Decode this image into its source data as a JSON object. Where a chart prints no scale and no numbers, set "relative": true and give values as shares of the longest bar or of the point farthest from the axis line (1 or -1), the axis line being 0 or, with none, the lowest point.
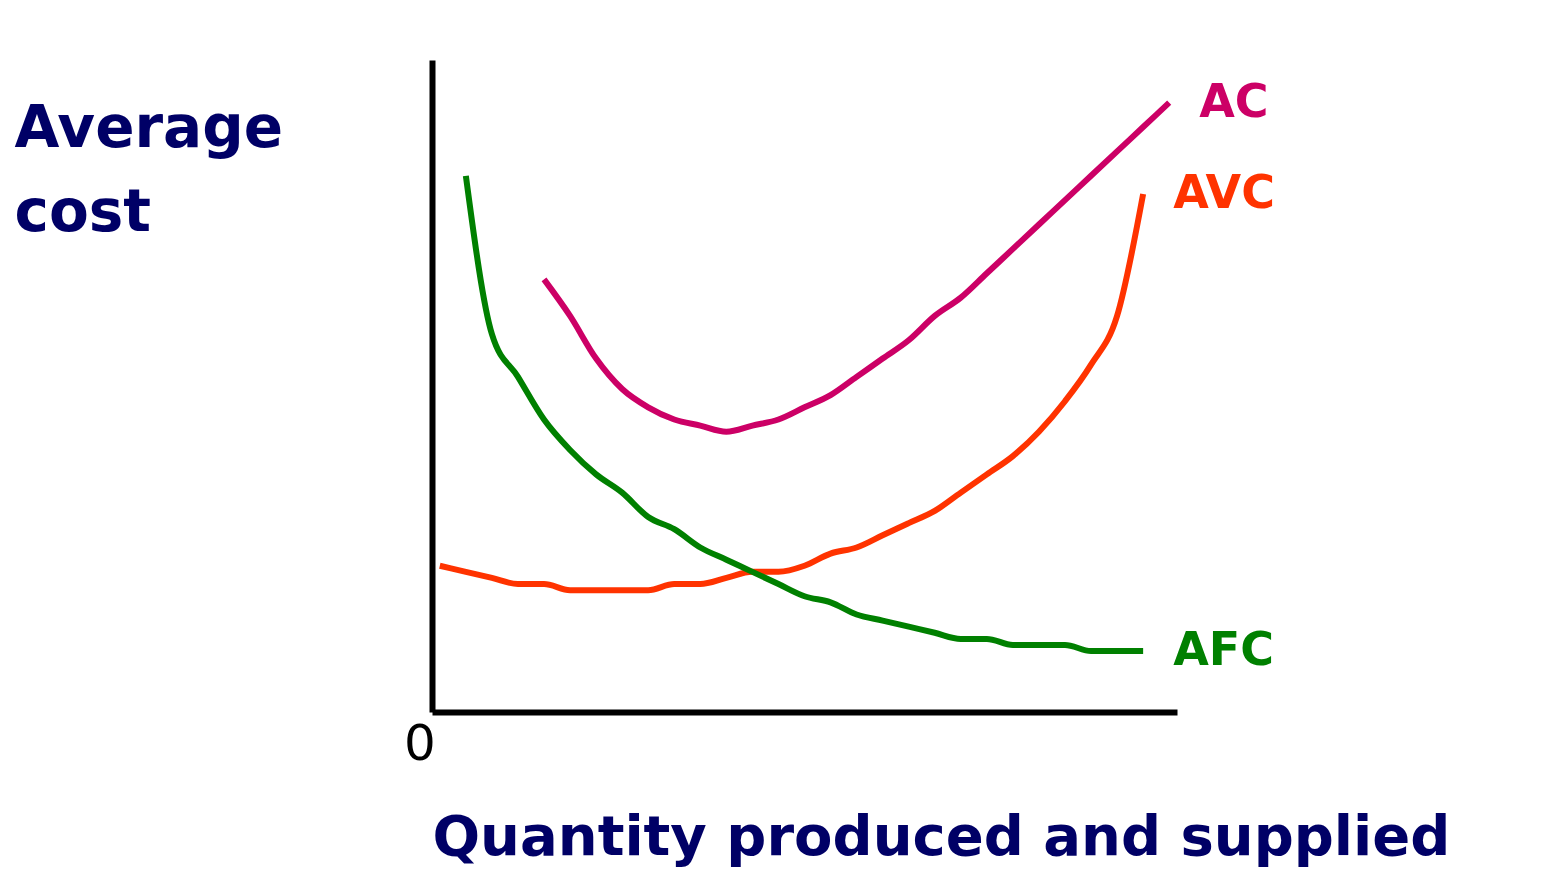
{
  "chart_data": {
    "type": "line",
    "relative": true,
    "xlabel": "Quantity produced and supplied",
    "ylabel": "Average cost",
    "annotations": [
      "0"
    ],
    "legend": false,
    "grid": false,
    "categories": [
      null,
      null,
      null,
      null,
      null,
      null,
      null,
      null,
      null,
      null,
      null,
      null,
      null,
      null,
      null,
      null,
      null,
      null,
      null,
      null,
      null,
      null,
      null,
      null,
      null,
      null,
      null,
      null,
      null
    ],
    "series": [
      {
        "name": "AC",
        "color": "#cc0066",
        "values": [
          null,
          null,
          null,
          null,
          0.71,
          0.65,
          0.58,
          0.53,
          0.5,
          0.48,
          0.47,
          0.46,
          0.47,
          0.48,
          0.5,
          0.52,
          0.55,
          0.58,
          0.61,
          0.65,
          0.68,
          0.72,
          0.76,
          0.8,
          0.84,
          0.88,
          0.92,
          0.96,
          1
        ]
      },
      {
        "name": "AVC",
        "color": "#ff3300",
        "values": [
          0.24,
          0.23,
          0.22,
          0.21,
          0.21,
          0.2,
          0.2,
          0.2,
          0.2,
          0.21,
          0.21,
          0.22,
          0.23,
          0.23,
          0.24,
          0.26,
          0.27,
          0.29,
          0.31,
          0.33,
          0.36,
          0.39,
          0.42,
          0.46,
          0.51,
          0.57,
          0.65,
          0.85,
          null
        ]
      },
      {
        "name": "AFC",
        "color": "#008000",
        "values": [
          null,
          0.88,
          0.62,
          0.55,
          0.48,
          0.43,
          0.39,
          0.36,
          0.32,
          0.3,
          0.27,
          0.25,
          0.23,
          0.21,
          0.19,
          0.18,
          0.16,
          0.15,
          0.14,
          0.13,
          0.12,
          0.12,
          0.11,
          0.11,
          0.11,
          0.1,
          0.1,
          0.1,
          null
        ]
      }
    ]
  }
}
